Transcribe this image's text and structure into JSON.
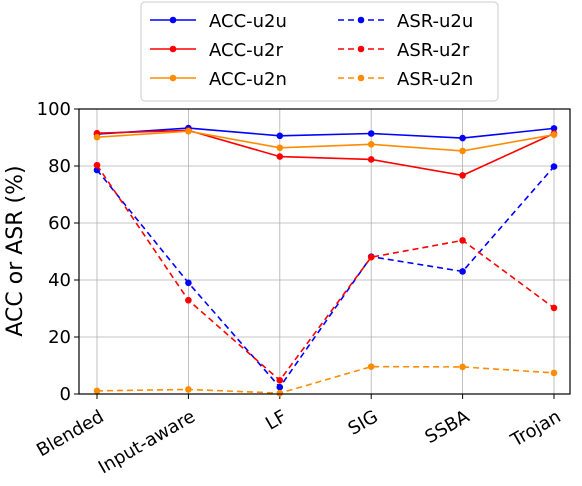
{
  "chart_data": {
    "type": "line",
    "title": "",
    "xlabel": "",
    "ylabel": "ACC or ASR (%)",
    "ylim": [
      0,
      100
    ],
    "yticks": [
      0,
      20,
      40,
      60,
      80,
      100
    ],
    "grid": true,
    "legend_position": "top",
    "categories": [
      "Blended",
      "Input-aware",
      "LF",
      "SIG",
      "SSBA",
      "Trojan"
    ],
    "series": [
      {
        "name": "ACC-u2u",
        "color": "#0000ff",
        "dash": false,
        "values": [
          91.2,
          93.3,
          90.6,
          91.4,
          89.8,
          93.2
        ]
      },
      {
        "name": "ACC-u2r",
        "color": "#ff0000",
        "dash": false,
        "values": [
          91.5,
          92.5,
          83.3,
          82.3,
          76.7,
          91.4
        ]
      },
      {
        "name": "ACC-u2n",
        "color": "#ff8c00",
        "dash": false,
        "values": [
          90.1,
          92.2,
          86.4,
          87.6,
          85.3,
          91.0
        ]
      },
      {
        "name": "ASR-u2u",
        "color": "#0000ff",
        "dash": true,
        "values": [
          78.6,
          39.0,
          2.4,
          48.2,
          43.0,
          79.8
        ]
      },
      {
        "name": "ASR-u2r",
        "color": "#ff0000",
        "dash": true,
        "values": [
          80.3,
          32.9,
          4.8,
          48.0,
          53.9,
          30.2
        ]
      },
      {
        "name": "ASR-u2n",
        "color": "#ff8c00",
        "dash": true,
        "values": [
          1.1,
          1.6,
          0.3,
          9.6,
          9.5,
          7.4
        ]
      }
    ]
  }
}
